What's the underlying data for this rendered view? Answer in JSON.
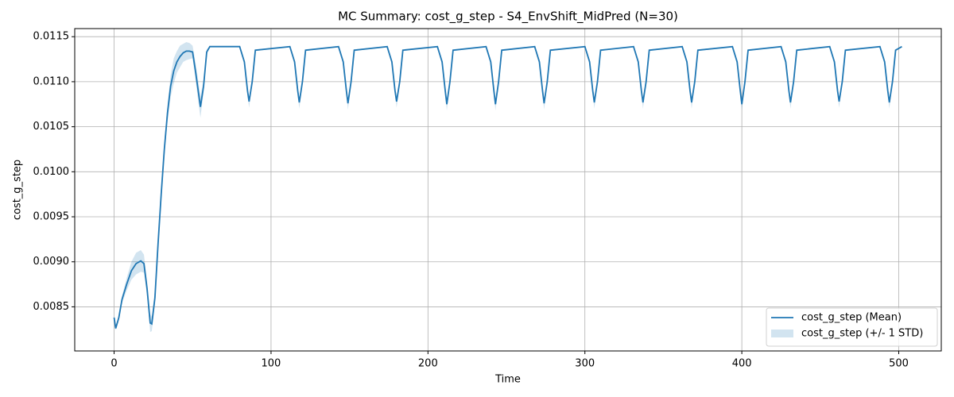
{
  "chart_data": {
    "type": "line",
    "title": "MC Summary: cost_g_step - S4_EnvShift_MidPred (N=30)",
    "x_label": "Time",
    "y_label": "cost_g_step",
    "x": [
      0,
      1,
      3,
      5,
      8,
      11,
      14,
      17,
      19,
      21,
      23,
      24,
      26,
      28,
      30,
      32,
      34,
      36,
      38,
      40,
      42,
      44,
      46,
      48,
      50,
      52,
      55,
      57,
      59,
      61,
      80,
      83,
      85,
      86,
      88,
      90,
      112,
      115,
      117,
      118,
      120,
      122,
      143,
      146,
      148,
      149,
      151,
      153,
      174,
      177,
      179,
      180,
      182,
      184,
      206,
      209,
      211,
      212,
      214,
      216,
      237,
      240,
      242,
      243,
      245,
      247,
      268,
      271,
      273,
      274,
      276,
      278,
      300,
      303,
      305,
      306,
      308,
      310,
      331,
      334,
      336,
      337,
      339,
      341,
      362,
      365,
      367,
      368,
      370,
      372,
      394,
      397,
      399,
      400,
      402,
      404,
      425,
      428,
      430,
      431,
      433,
      435,
      456,
      459,
      461,
      462,
      464,
      466,
      488,
      491,
      493,
      494,
      496,
      498,
      502
    ],
    "series": [
      {
        "name": "cost_g_step (Mean)",
        "color": "#1f77b4",
        "values": [
          0.00838,
          0.00826,
          0.00838,
          0.00858,
          0.00875,
          0.0089,
          0.00898,
          0.00901,
          0.00898,
          0.0087,
          0.00832,
          0.00831,
          0.0086,
          0.0092,
          0.00975,
          0.01025,
          0.01065,
          0.01095,
          0.01112,
          0.01122,
          0.01128,
          0.01132,
          0.01134,
          0.01134,
          0.01133,
          0.0111,
          0.01072,
          0.01095,
          0.01133,
          0.01139,
          0.01139,
          0.01122,
          0.0109,
          0.01078,
          0.011,
          0.01135,
          0.01139,
          0.01122,
          0.0109,
          0.01077,
          0.011,
          0.01135,
          0.01139,
          0.01122,
          0.0109,
          0.01076,
          0.011,
          0.01135,
          0.01139,
          0.01122,
          0.0109,
          0.01078,
          0.011,
          0.01135,
          0.01139,
          0.01122,
          0.0109,
          0.01075,
          0.011,
          0.01135,
          0.01139,
          0.01122,
          0.0109,
          0.01075,
          0.011,
          0.01135,
          0.01139,
          0.01122,
          0.0109,
          0.01076,
          0.011,
          0.01135,
          0.01139,
          0.01122,
          0.0109,
          0.01077,
          0.011,
          0.01135,
          0.01139,
          0.01122,
          0.0109,
          0.01077,
          0.011,
          0.01135,
          0.01139,
          0.01122,
          0.0109,
          0.01077,
          0.011,
          0.01135,
          0.01139,
          0.01122,
          0.0109,
          0.01075,
          0.011,
          0.01135,
          0.01139,
          0.01122,
          0.0109,
          0.01077,
          0.011,
          0.01135,
          0.01139,
          0.01122,
          0.0109,
          0.01078,
          0.011,
          0.01135,
          0.01139,
          0.01122,
          0.0109,
          0.01077,
          0.011,
          0.01135,
          0.01139
        ]
      },
      {
        "name": "cost_g_step (+/- 1 STD)",
        "color": "#1f77b4",
        "lower": [
          0.00836,
          0.00824,
          0.00835,
          0.00854,
          0.00868,
          0.0088,
          0.00886,
          0.00889,
          0.00888,
          0.00862,
          0.00822,
          0.00823,
          0.00852,
          0.00912,
          0.00967,
          0.01017,
          0.01055,
          0.01083,
          0.01098,
          0.0111,
          0.01116,
          0.01122,
          0.01124,
          0.01125,
          0.01126,
          0.011,
          0.0106,
          0.01088,
          0.0113,
          0.01139,
          0.01139,
          0.0112,
          0.01086,
          0.01071,
          0.01097,
          0.01134,
          0.01139,
          0.0112,
          0.01086,
          0.0107,
          0.01097,
          0.01134,
          0.01139,
          0.0112,
          0.01086,
          0.01069,
          0.01097,
          0.01134,
          0.01139,
          0.0112,
          0.01086,
          0.01071,
          0.01097,
          0.01134,
          0.01139,
          0.0112,
          0.01086,
          0.01068,
          0.01097,
          0.01134,
          0.01139,
          0.0112,
          0.01086,
          0.01068,
          0.01097,
          0.01134,
          0.01139,
          0.0112,
          0.01086,
          0.01069,
          0.01097,
          0.01134,
          0.01139,
          0.0112,
          0.01086,
          0.0107,
          0.01097,
          0.01134,
          0.01139,
          0.0112,
          0.01086,
          0.0107,
          0.01097,
          0.01134,
          0.01139,
          0.0112,
          0.01086,
          0.0107,
          0.01097,
          0.01134,
          0.01139,
          0.0112,
          0.01086,
          0.01068,
          0.01097,
          0.01134,
          0.01139,
          0.0112,
          0.01086,
          0.0107,
          0.01097,
          0.01134,
          0.01139,
          0.0112,
          0.01086,
          0.01071,
          0.01097,
          0.01134,
          0.01139,
          0.0112,
          0.01086,
          0.0107,
          0.01097,
          0.01134,
          0.01139
        ],
        "upper": [
          0.0084,
          0.00828,
          0.00841,
          0.00862,
          0.00882,
          0.009,
          0.0091,
          0.00913,
          0.00908,
          0.00878,
          0.00842,
          0.00839,
          0.00868,
          0.00928,
          0.00983,
          0.01033,
          0.01075,
          0.01107,
          0.01126,
          0.01134,
          0.0114,
          0.01142,
          0.01144,
          0.01143,
          0.0114,
          0.0112,
          0.01084,
          0.01102,
          0.01136,
          0.01139,
          0.01139,
          0.01124,
          0.01094,
          0.01083,
          0.01103,
          0.01136,
          0.01139,
          0.01124,
          0.01094,
          0.01082,
          0.01103,
          0.01136,
          0.01139,
          0.01124,
          0.01094,
          0.01081,
          0.01103,
          0.01136,
          0.01139,
          0.01124,
          0.01094,
          0.01083,
          0.01103,
          0.01136,
          0.01139,
          0.01124,
          0.01094,
          0.0108,
          0.01103,
          0.01136,
          0.01139,
          0.01124,
          0.01094,
          0.0108,
          0.01103,
          0.01136,
          0.01139,
          0.01124,
          0.01094,
          0.01081,
          0.01103,
          0.01136,
          0.01139,
          0.01124,
          0.01094,
          0.01082,
          0.01103,
          0.01136,
          0.01139,
          0.01124,
          0.01094,
          0.01082,
          0.01103,
          0.01136,
          0.01139,
          0.01124,
          0.01094,
          0.01082,
          0.01103,
          0.01136,
          0.01139,
          0.01124,
          0.01094,
          0.0108,
          0.01103,
          0.01136,
          0.01139,
          0.01124,
          0.01094,
          0.01082,
          0.01103,
          0.01136,
          0.01139,
          0.01124,
          0.01094,
          0.01083,
          0.01103,
          0.01136,
          0.01139,
          0.01124,
          0.01094,
          0.01082,
          0.01103,
          0.01136,
          0.01139
        ]
      }
    ],
    "xlim": [
      -25.1,
      527.1
    ],
    "xticks": [
      0,
      100,
      200,
      300,
      400,
      500
    ],
    "ylim": [
      0.00801,
      0.01159
    ],
    "yticks": [
      0.0085,
      {
        "value": 0.009,
        "label": "0.0090"
      },
      0.0095,
      {
        "value": 0.01,
        "label": "0.0100"
      },
      0.0105,
      {
        "value": 0.011,
        "label": "0.0110"
      },
      0.0115
    ],
    "grid": true,
    "legend": "lower right",
    "band_opacity": 0.2
  }
}
